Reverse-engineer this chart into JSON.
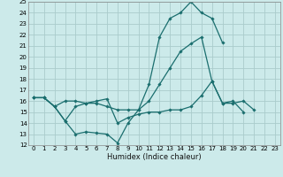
{
  "xlabel": "Humidex (Indice chaleur)",
  "bg_color": "#cceaea",
  "grid_color": "#aacccc",
  "line_color": "#1a6e6e",
  "xlim": [
    -0.5,
    23.5
  ],
  "ylim": [
    12,
    25
  ],
  "xticks": [
    0,
    1,
    2,
    3,
    4,
    5,
    6,
    7,
    8,
    9,
    10,
    11,
    12,
    13,
    14,
    15,
    16,
    17,
    18,
    19,
    20,
    21,
    22,
    23
  ],
  "yticks": [
    12,
    13,
    14,
    15,
    16,
    17,
    18,
    19,
    20,
    21,
    22,
    23,
    24,
    25
  ],
  "series": [
    [
      16.3,
      16.3,
      15.5,
      14.2,
      13.0,
      13.2,
      13.1,
      13.0,
      12.2,
      14.0,
      15.2,
      17.5,
      21.8,
      23.5,
      24.0,
      25.0,
      24.0,
      23.5,
      21.3,
      null,
      null,
      null,
      null,
      null
    ],
    [
      16.3,
      16.3,
      15.5,
      16.0,
      16.0,
      15.8,
      15.8,
      15.5,
      15.2,
      15.2,
      15.2,
      16.0,
      17.5,
      19.0,
      20.5,
      21.2,
      21.8,
      17.8,
      15.8,
      15.8,
      16.0,
      15.2,
      null,
      null
    ],
    [
      16.3,
      16.3,
      15.5,
      14.2,
      15.5,
      15.8,
      16.0,
      16.2,
      14.0,
      14.5,
      14.8,
      15.0,
      15.0,
      15.2,
      15.2,
      15.5,
      16.5,
      17.8,
      15.8,
      16.0,
      15.0,
      null,
      null,
      null
    ]
  ]
}
